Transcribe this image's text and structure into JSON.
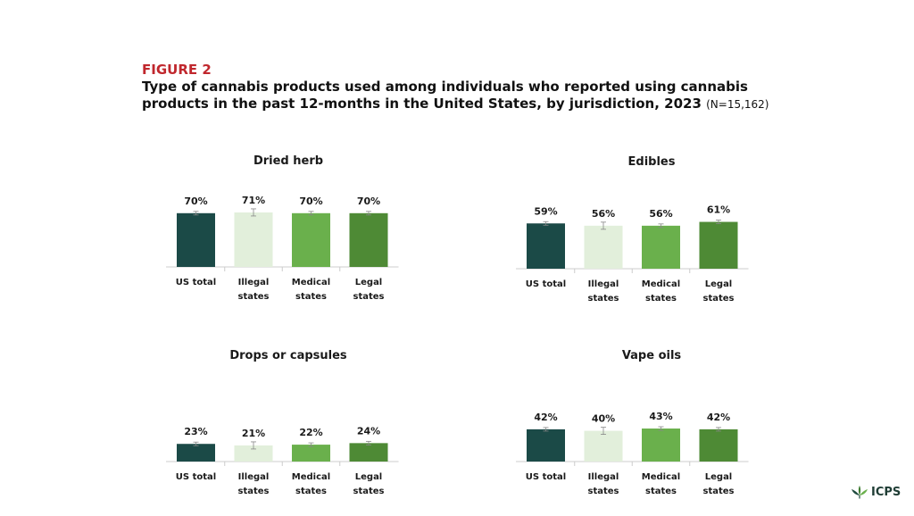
{
  "figure": {
    "label": "FIGURE 2",
    "title": "Type of cannabis products used among individuals who reported using cannabis products in the past 12-months in the United States, by jurisdiction, 2023 ",
    "n_label": "(N=15,162)"
  },
  "colors": {
    "us_total": "#1b4a47",
    "illegal": "#e2efdb",
    "medical": "#6ab04c",
    "legal": "#4e8a35",
    "axis": "#cccccc",
    "error": "#888888"
  },
  "logo": {
    "text": "ICPS",
    "icon": "cannabis-leaf-icon"
  },
  "chart_data": [
    {
      "type": "bar",
      "title": "Dried herb",
      "categories": [
        [
          "US total"
        ],
        [
          "Illegal",
          "states"
        ],
        [
          "Medical",
          "states"
        ],
        [
          "Legal",
          "states"
        ]
      ],
      "values": [
        70,
        71,
        70,
        70
      ],
      "labels": [
        "70%",
        "71%",
        "70%",
        "70%"
      ],
      "error_bars": true,
      "ylim": [
        0,
        100
      ]
    },
    {
      "type": "bar",
      "title": "Edibles",
      "categories": [
        [
          "US total"
        ],
        [
          "Illegal",
          "states"
        ],
        [
          "Medical",
          "states"
        ],
        [
          "Legal",
          "states"
        ]
      ],
      "values": [
        59,
        56,
        56,
        61
      ],
      "labels": [
        "59%",
        "56%",
        "56%",
        "61%"
      ],
      "error_bars": true,
      "ylim": [
        0,
        100
      ]
    },
    {
      "type": "bar",
      "title": "Drops or capsules",
      "categories": [
        [
          "US total"
        ],
        [
          "Illegal",
          "states"
        ],
        [
          "Medical",
          "states"
        ],
        [
          "Legal",
          "states"
        ]
      ],
      "values": [
        23,
        21,
        22,
        24
      ],
      "labels": [
        "23%",
        "21%",
        "22%",
        "24%"
      ],
      "error_bars": true,
      "ylim": [
        0,
        100
      ]
    },
    {
      "type": "bar",
      "title": "Vape oils",
      "categories": [
        [
          "US total"
        ],
        [
          "Illegal",
          "states"
        ],
        [
          "Medical",
          "states"
        ],
        [
          "Legal",
          "states"
        ]
      ],
      "values": [
        42,
        40,
        43,
        42
      ],
      "labels": [
        "42%",
        "40%",
        "43%",
        "42%"
      ],
      "error_bars": true,
      "ylim": [
        0,
        100
      ]
    }
  ]
}
